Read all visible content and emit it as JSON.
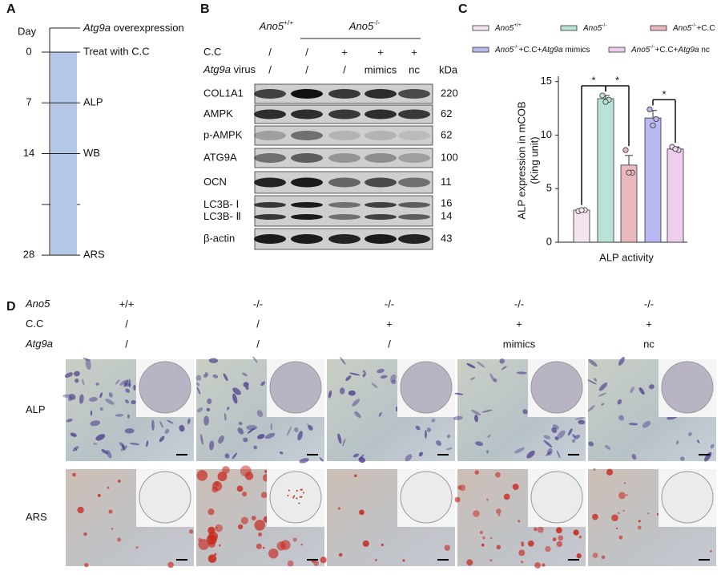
{
  "panel_a": {
    "letter": "A",
    "axis_label": "Day",
    "pre_treatment": [
      {
        "text": "Atg9a",
        "style": "italic"
      },
      {
        "text": " overexpression"
      }
    ],
    "timeline": [
      {
        "day": 0,
        "event": "Treat with C.C"
      },
      {
        "day": 7,
        "event": "ALP"
      },
      {
        "day": 14,
        "event": "WB"
      },
      {
        "day": 28,
        "event": "ARS"
      }
    ]
  },
  "panel_b": {
    "letter": "B",
    "groups": [
      [
        {
          "text": "Ano5",
          "style": "italic"
        },
        {
          "text": "+/+",
          "style": "sup"
        }
      ],
      [
        {
          "text": "Ano5",
          "style": "italic"
        },
        {
          "text": "-/-",
          "style": "sup"
        }
      ]
    ],
    "conditions": [
      {
        "label": [
          {
            "text": "C.C"
          }
        ],
        "lanes": [
          "/",
          "/",
          "+",
          "+",
          "+"
        ]
      },
      {
        "label": [
          {
            "text": "Atg9a",
            "style": "italic"
          },
          {
            "text": " virus"
          }
        ],
        "lanes": [
          "/",
          "/",
          "/",
          "mimics",
          "nc"
        ]
      }
    ],
    "kda_header": "kDa",
    "blots": [
      {
        "labels": [
          "COL1A1"
        ],
        "kda": [
          220
        ]
      },
      {
        "labels": [
          "AMPK"
        ],
        "kda": [
          62
        ]
      },
      {
        "labels": [
          "p-AMPK"
        ],
        "kda": [
          62
        ]
      },
      {
        "labels": [
          "ATG9A"
        ],
        "kda": [
          100
        ]
      },
      {
        "labels": [
          "OCN"
        ],
        "kda": [
          11
        ]
      },
      {
        "labels": [
          "LC3B- Ⅰ",
          "LC3B- Ⅱ"
        ],
        "kda": [
          16,
          14
        ]
      },
      {
        "labels": [
          "β-actin"
        ],
        "kda": [
          43
        ]
      }
    ]
  },
  "panel_c": {
    "letter": "C"
  },
  "chart_data": {
    "type": "bar",
    "ylabel": [
      "ALP expression in mCOB",
      "(King unit)"
    ],
    "categories": [
      "ALP activity"
    ],
    "ylim": [
      0,
      15.5
    ],
    "yticks": [
      0,
      5,
      10,
      15
    ],
    "series": [
      {
        "name": [
          {
            "text": "Ano5",
            "style": "italic"
          },
          {
            "text": "+/+",
            "style": "sup"
          }
        ],
        "color": "#f4e4f0",
        "values": [
          3.0
        ],
        "errors": [
          0.1
        ],
        "points": [
          [
            2.9,
            3.0,
            3.0
          ]
        ]
      },
      {
        "name": [
          {
            "text": "Ano5",
            "style": "italic"
          },
          {
            "text": "-/-",
            "style": "sup"
          }
        ],
        "color": "#b8e3d8",
        "values": [
          13.4
        ],
        "errors": [
          0.3
        ],
        "points": [
          [
            13.7,
            13.3,
            13.1
          ]
        ]
      },
      {
        "name": [
          {
            "text": "Ano5",
            "style": "italic"
          },
          {
            "text": "-/-",
            "style": "sup"
          },
          {
            "text": "+C.C"
          }
        ],
        "color": "#e8b8bd",
        "values": [
          7.2
        ],
        "errors": [
          0.9
        ],
        "points": [
          [
            8.6,
            6.5,
            6.5
          ]
        ]
      },
      {
        "name": [
          {
            "text": "Ano5",
            "style": "italic"
          },
          {
            "text": "-/-",
            "style": "sup"
          },
          {
            "text": "+C.C+"
          },
          {
            "text": "Atg9a",
            "style": "italic"
          },
          {
            "text": " mimics"
          }
        ],
        "color": "#b9b8f0",
        "values": [
          11.6
        ],
        "errors": [
          0.7
        ],
        "points": [
          [
            12.4,
            11.5,
            10.9
          ]
        ]
      },
      {
        "name": [
          {
            "text": "Ano5",
            "style": "italic"
          },
          {
            "text": "-/-",
            "style": "sup"
          },
          {
            "text": "+C.C+"
          },
          {
            "text": "Atg9a",
            "style": "italic"
          },
          {
            "text": " nc"
          }
        ],
        "color": "#efcdef",
        "values": [
          8.7
        ],
        "errors": [
          0.2
        ],
        "points": [
          [
            8.9,
            8.6,
            8.7
          ]
        ]
      }
    ],
    "annotations": [
      {
        "text": "*",
        "between": [
          0,
          1
        ]
      },
      {
        "text": "*",
        "between": [
          1,
          2
        ]
      },
      {
        "text": "*",
        "between": [
          3,
          4
        ]
      }
    ]
  },
  "panel_d": {
    "letter": "D",
    "conditions": [
      {
        "label": [
          {
            "text": "Ano5",
            "style": "italic"
          }
        ],
        "columns": [
          "+/+",
          "-/-",
          "-/-",
          "-/-",
          "-/-"
        ]
      },
      {
        "label": [
          {
            "text": "C.C"
          }
        ],
        "columns": [
          "/",
          "/",
          "+",
          "+",
          "+"
        ]
      },
      {
        "label": [
          {
            "text": "Atg9a",
            "style": "italic"
          }
        ],
        "columns": [
          "/",
          "/",
          "/",
          "mimics",
          "nc"
        ]
      }
    ],
    "rows": [
      "ALP",
      "ARS"
    ]
  }
}
